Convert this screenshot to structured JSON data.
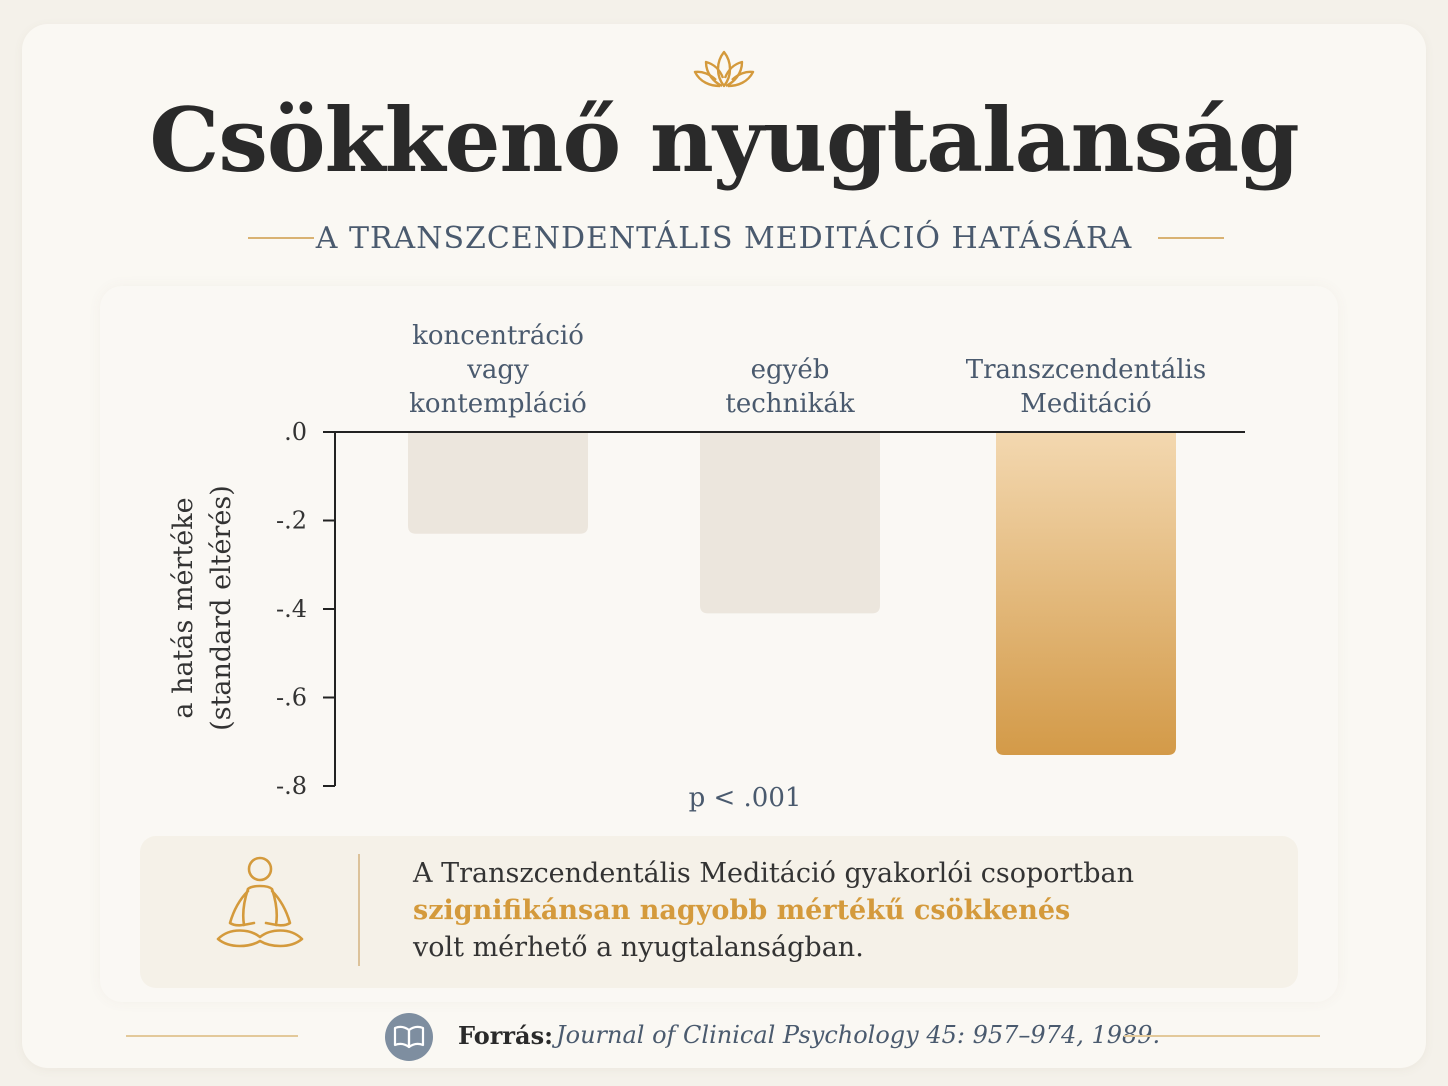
{
  "header": {
    "title": "Csökkenő nyugtalanság",
    "subtitle": "A TRANSZCENDENTÁLIS MEDITÁCIÓ HATÁSÁRA"
  },
  "chart_data": {
    "type": "bar",
    "categories": [
      [
        "koncentráció",
        "vagy",
        "kontempláció"
      ],
      [
        "egyéb",
        "technikák"
      ],
      [
        "Transzcendentális",
        "Meditáció"
      ]
    ],
    "values": [
      -0.23,
      -0.41,
      -0.73
    ],
    "ylabel": [
      "a hatás mértéke",
      "(standard eltérés)"
    ],
    "ylim": [
      -0.8,
      0.0
    ],
    "yticks": [
      ".0",
      "-.2",
      "-.4",
      "-.6",
      "-.8"
    ],
    "annotation": "p < .001",
    "grid": false,
    "colors": {
      "neutral_bar": "#ece6dd",
      "highlight_top": "#f3d8b0",
      "highlight_bottom": "#d39a48",
      "axis": "#222222",
      "label": "#4a5a6e"
    }
  },
  "note": {
    "line1": "A Transzcendentális Meditáció gyakorlói csoportban",
    "highlight": "szignifikánsan nagyobb mértékű csökkenés",
    "line3": "volt mérhető a nyugtalanságban.",
    "icon": "meditation-icon"
  },
  "footer": {
    "source_label": "Forrás:",
    "source_text": "Journal of Clinical Psychology 45: 957–974, 1989.",
    "icon": "book-icon"
  },
  "decor": {
    "top_icon": "lotus-icon",
    "accent": "#d9a24a"
  }
}
